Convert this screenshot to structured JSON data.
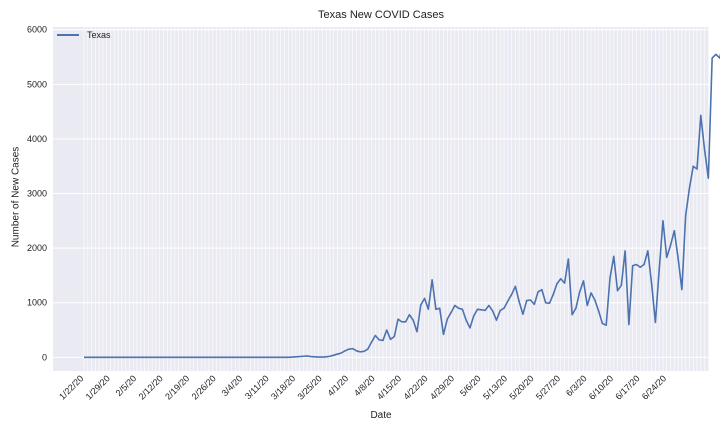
{
  "chart_data": {
    "type": "line",
    "title": "Texas New COVID Cases",
    "xlabel": "Date",
    "ylabel": "Number of New Cases",
    "ylim": [
      -250,
      6050
    ],
    "y_ticks": [
      0,
      1000,
      2000,
      3000,
      4000,
      5000,
      6000
    ],
    "x_tick_labels": [
      "1/22/20",
      "1/29/20",
      "2/5/20",
      "2/12/20",
      "2/19/20",
      "2/26/20",
      "3/4/20",
      "3/11/20",
      "3/18/20",
      "3/25/20",
      "4/1/20",
      "4/8/20",
      "4/15/20",
      "4/22/20",
      "4/29/20",
      "5/6/20",
      "5/13/20",
      "5/20/20",
      "5/27/20",
      "6/3/20",
      "6/10/20",
      "6/17/20",
      "6/24/20"
    ],
    "grid": true,
    "legend_position": "upper-left",
    "colors": {
      "series": "#4C72B0",
      "plot_bg": "#EAEAF2",
      "grid": "#ffffff"
    },
    "series": [
      {
        "name": "Texas",
        "start_date": "2020-01-22",
        "values": [
          0,
          0,
          0,
          0,
          0,
          0,
          0,
          0,
          0,
          0,
          0,
          0,
          0,
          0,
          0,
          0,
          0,
          0,
          0,
          0,
          0,
          0,
          0,
          0,
          0,
          0,
          0,
          0,
          0,
          0,
          0,
          0,
          0,
          0,
          0,
          0,
          0,
          0,
          0,
          0,
          0,
          0,
          0,
          0,
          0,
          0,
          0,
          0,
          0,
          0,
          0,
          0,
          0,
          0,
          0,
          5,
          10,
          15,
          20,
          25,
          15,
          10,
          5,
          5,
          10,
          20,
          40,
          60,
          80,
          120,
          150,
          160,
          120,
          100,
          110,
          150,
          280,
          400,
          320,
          310,
          500,
          330,
          380,
          700,
          650,
          650,
          780,
          680,
          470,
          960,
          1080,
          880,
          1420,
          880,
          900,
          420,
          700,
          820,
          950,
          900,
          880,
          680,
          540,
          760,
          880,
          870,
          860,
          950,
          850,
          680,
          860,
          900,
          1030,
          1150,
          1300,
          1020,
          790,
          1040,
          1050,
          970,
          1200,
          1240,
          1000,
          990,
          1150,
          1350,
          1440,
          1360,
          1800,
          780,
          900,
          1200,
          1400,
          950,
          1180,
          1050,
          850,
          620,
          590,
          1450,
          1850,
          1220,
          1320,
          1950,
          600,
          1680,
          1700,
          1650,
          1700,
          1950,
          1350,
          640,
          1600,
          2500,
          1830,
          2050,
          2320,
          1820,
          1240,
          2600,
          3100,
          3500,
          3450,
          4430,
          3800,
          3280,
          5480,
          5550,
          5480,
          5800
        ]
      }
    ]
  }
}
